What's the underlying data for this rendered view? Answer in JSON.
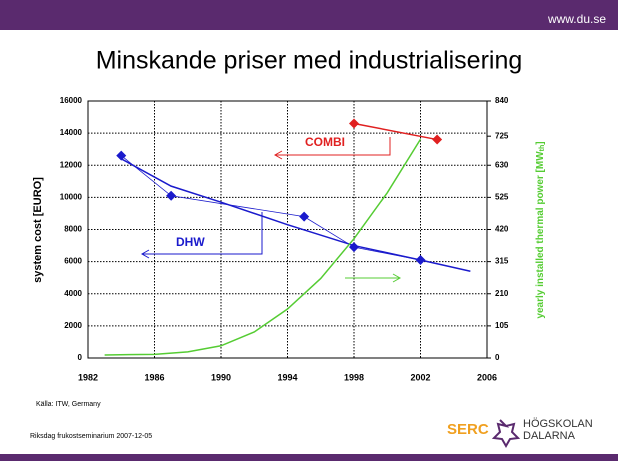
{
  "site": "www.du.se",
  "footer": {
    "source": "Källa: ITW, Germany",
    "event": "Riksdag frukostseminarium 2007-12-05",
    "logo1": "SERC",
    "logo2a": "HÖGSKOLAN",
    "logo2b": "DALARNA"
  },
  "chart_data": {
    "type": "line",
    "title": "Minskande priser med industrialisering",
    "y_label": "system cost [EURO]",
    "y2_label": "yearly installed thermal power   [MW",
    "y2_label_sub": "th",
    "y2_label_end": "]",
    "xlim": [
      1982,
      2006
    ],
    "xticks": [
      1982,
      1986,
      1990,
      1994,
      1998,
      2002,
      2006
    ],
    "ylim": [
      0,
      16000
    ],
    "yticks": [
      0,
      2000,
      4000,
      6000,
      8000,
      10000,
      12000,
      14000,
      16000
    ],
    "y2lim": [
      0,
      840
    ],
    "y2ticks": [
      0,
      105,
      210,
      315,
      420,
      525,
      630,
      725,
      840
    ],
    "grid": true,
    "series": [
      {
        "name": "DHW",
        "color": "#1a1acc",
        "markers": true,
        "x": [
          1984,
          1987,
          1995,
          1998,
          2002
        ],
        "values": [
          12600,
          10100,
          8800,
          6900,
          6100
        ]
      },
      {
        "name": "COMBI",
        "color": "#e02020",
        "markers": true,
        "x": [
          1998,
          2003
        ],
        "values": [
          14600,
          13600
        ]
      },
      {
        "color": "#1a1acc",
        "x": [
          1984,
          1987,
          1990,
          1994,
          1998,
          2002,
          2005
        ],
        "values": [
          12400,
          10700,
          9700,
          8300,
          7000,
          6100,
          5400
        ]
      },
      {
        "color": "#55cc33",
        "axis": "y2",
        "x": [
          1983,
          1986,
          1988,
          1990,
          1992,
          1994,
          1996,
          1998,
          2000,
          2002
        ],
        "values": [
          10,
          12,
          20,
          40,
          85,
          160,
          260,
          390,
          540,
          715
        ]
      }
    ]
  }
}
